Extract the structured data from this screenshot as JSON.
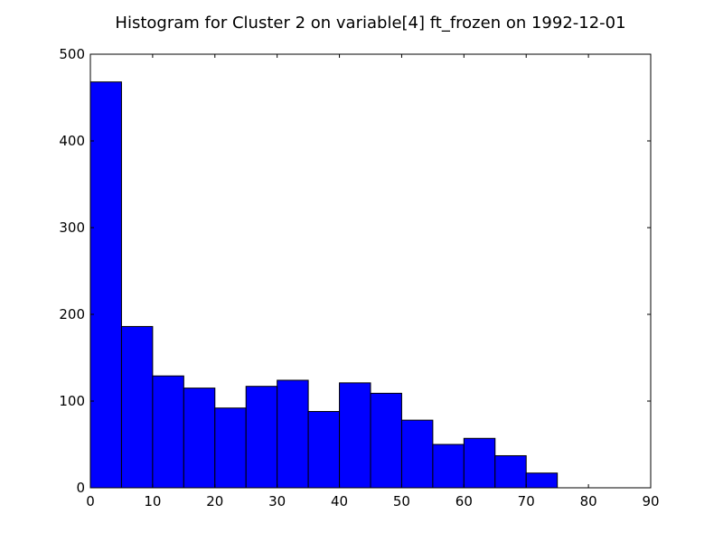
{
  "chart_data": {
    "type": "bar",
    "title": "Histogram for Cluster 2 on variable[4] ft_frozen on 1992-12-01",
    "xlabel": "",
    "ylabel": "",
    "xlim": [
      0,
      90
    ],
    "ylim": [
      0,
      500
    ],
    "xticks": [
      0,
      10,
      20,
      30,
      40,
      50,
      60,
      70,
      80,
      90
    ],
    "yticks": [
      0,
      100,
      200,
      300,
      400,
      500
    ],
    "bins": [
      {
        "start": 0,
        "end": 5,
        "count": 468
      },
      {
        "start": 5,
        "end": 10,
        "count": 186
      },
      {
        "start": 10,
        "end": 15,
        "count": 129
      },
      {
        "start": 15,
        "end": 20,
        "count": 115
      },
      {
        "start": 20,
        "end": 25,
        "count": 92
      },
      {
        "start": 25,
        "end": 30,
        "count": 117
      },
      {
        "start": 30,
        "end": 35,
        "count": 124
      },
      {
        "start": 35,
        "end": 40,
        "count": 88
      },
      {
        "start": 40,
        "end": 45,
        "count": 121
      },
      {
        "start": 45,
        "end": 50,
        "count": 109
      },
      {
        "start": 50,
        "end": 55,
        "count": 78
      },
      {
        "start": 55,
        "end": 60,
        "count": 50
      },
      {
        "start": 60,
        "end": 65,
        "count": 57
      },
      {
        "start": 65,
        "end": 70,
        "count": 37
      },
      {
        "start": 70,
        "end": 75,
        "count": 17
      }
    ],
    "bar_color": "#0000ff",
    "edge_color": "#000000",
    "grid": false,
    "legend": "none"
  }
}
